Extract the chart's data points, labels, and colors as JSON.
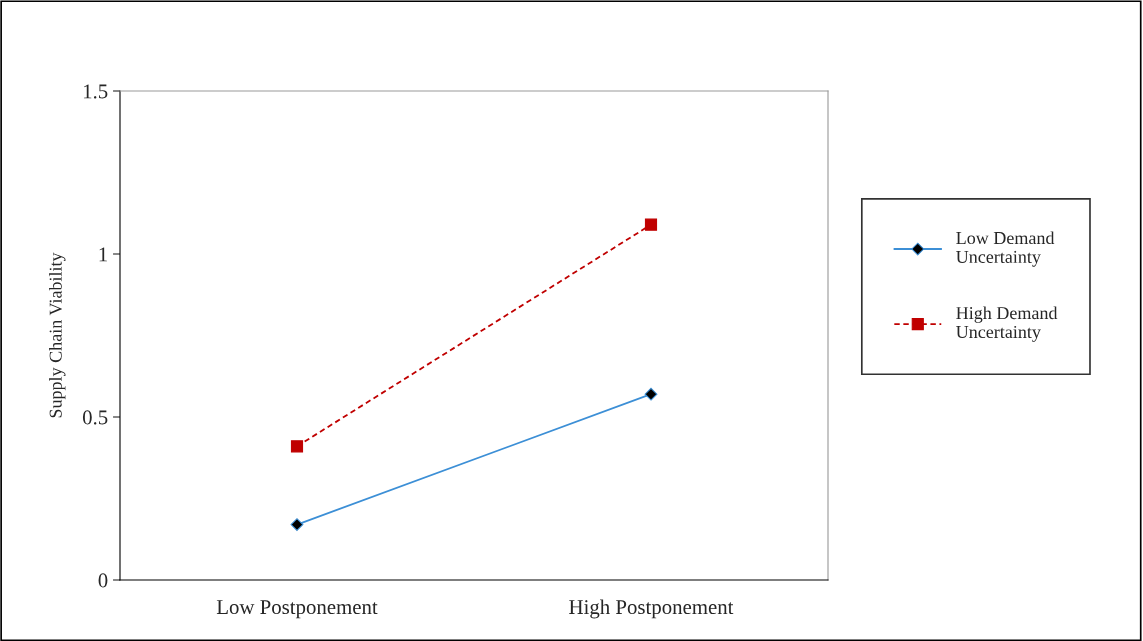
{
  "chart_data": {
    "type": "line",
    "ylabel": "Supply Chain Viability",
    "categories": [
      "Low Postponement",
      "High Postponement"
    ],
    "series": [
      {
        "name": "Low Demand Uncertainty",
        "color": "#3c8fd6",
        "values": [
          0.17,
          0.57
        ],
        "marker": "diamond",
        "line_style": "solid"
      },
      {
        "name": "High Demand Uncertainty",
        "color": "#c00000",
        "values": [
          0.41,
          1.09
        ],
        "marker": "square",
        "line_style": "dashed"
      }
    ],
    "ylim": [
      0,
      1.5
    ],
    "yticks": [
      0,
      0.5,
      1,
      1.5
    ],
    "grid": false,
    "legend": "right"
  }
}
